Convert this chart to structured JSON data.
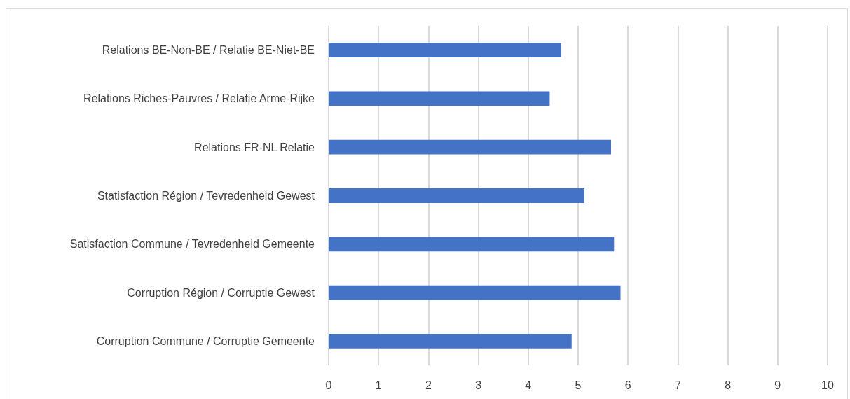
{
  "chart_data": {
    "type": "bar",
    "orientation": "horizontal",
    "categories": [
      "Relations BE-Non-BE / Relatie BE-Niet-BE",
      "Relations Riches-Pauvres / Relatie Arme-Rijke",
      "Relations FR-NL Relatie",
      "Statisfaction Région / Tevredenheid Gewest",
      "Satisfaction Commune / Tevredenheid Gemeente",
      "Corruption Région / Corruptie Gewest",
      "Corruption Commune / Corruptie Gemeente"
    ],
    "values": [
      4.66,
      4.43,
      5.66,
      5.12,
      5.72,
      5.85,
      4.87
    ],
    "color": "#4472c4",
    "xlim": [
      0,
      10
    ],
    "xticks": [
      0,
      1,
      2,
      3,
      4,
      5,
      6,
      7,
      8,
      9,
      10
    ],
    "grid": "x"
  }
}
